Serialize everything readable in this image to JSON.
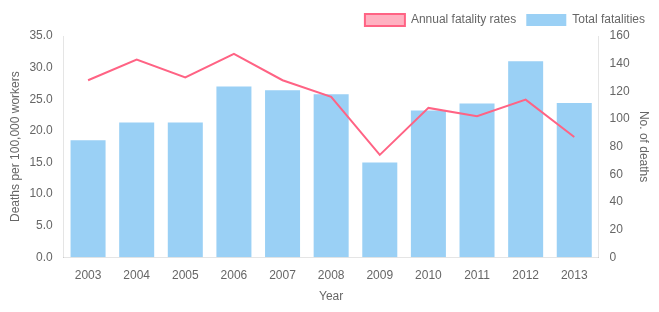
{
  "chart_data": {
    "type": "bar",
    "categories": [
      "2003",
      "2004",
      "2005",
      "2006",
      "2007",
      "2008",
      "2009",
      "2010",
      "2011",
      "2012",
      "2013"
    ],
    "xlabel": "Year",
    "ylabel": "Deaths per 100,000 workers",
    "y2label": "No. of deaths",
    "series": [
      {
        "name": "Total fatalities",
        "type": "bar",
        "values": [
          18.5,
          21.3,
          21.3,
          27.0,
          26.4,
          25.8,
          15.0,
          23.2,
          24.3,
          31.0,
          24.4
        ]
      },
      {
        "name": "Annual fatality rates",
        "type": "line",
        "axis": "y2",
        "values": [
          128,
          143,
          130,
          147,
          128,
          116,
          74,
          108,
          102,
          114,
          87
        ]
      }
    ],
    "ylim": [
      0,
      35.0
    ],
    "yticks": [
      {
        "value": 0,
        "label": "0.0"
      },
      {
        "value": 5,
        "label": "5.0"
      },
      {
        "value": 10,
        "label": "10.0"
      },
      {
        "value": 15,
        "label": "15.0"
      },
      {
        "value": 20,
        "label": "20.0"
      },
      {
        "value": 25,
        "label": "25.0"
      },
      {
        "value": 30,
        "label": "30.0"
      },
      {
        "value": 35,
        "label": "35.0"
      }
    ],
    "y2lim": [
      0,
      160
    ],
    "y2ticks": [
      0,
      20,
      40,
      60,
      80,
      100,
      120,
      140,
      160
    ],
    "grid": false,
    "legend": "upper right"
  }
}
